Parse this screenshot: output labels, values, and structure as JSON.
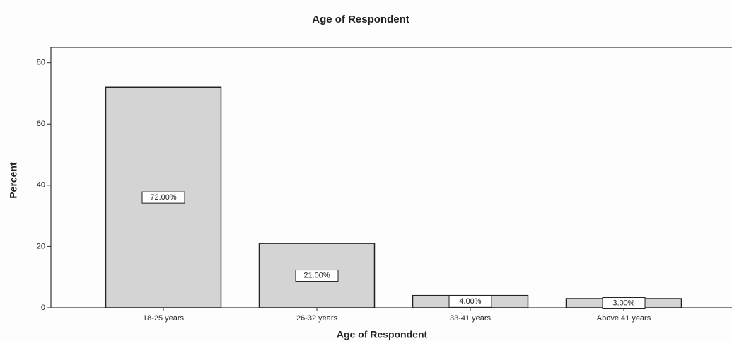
{
  "chart_data": {
    "type": "bar",
    "title": "Age of Respondent",
    "x_label": "Age of Respondent",
    "y_label": "Percent",
    "categories": [
      "18-25 years",
      "26-32 years",
      "33-41 years",
      "Above 41 years"
    ],
    "values": [
      72,
      21,
      4,
      3
    ],
    "value_labels": [
      "72.00%",
      "21.00%",
      "4.00%",
      "3.00%"
    ],
    "color": "#d4d4d4",
    "ylim": [
      0,
      85
    ],
    "yticks": [
      0,
      20,
      40,
      60,
      80
    ],
    "grid": false
  }
}
